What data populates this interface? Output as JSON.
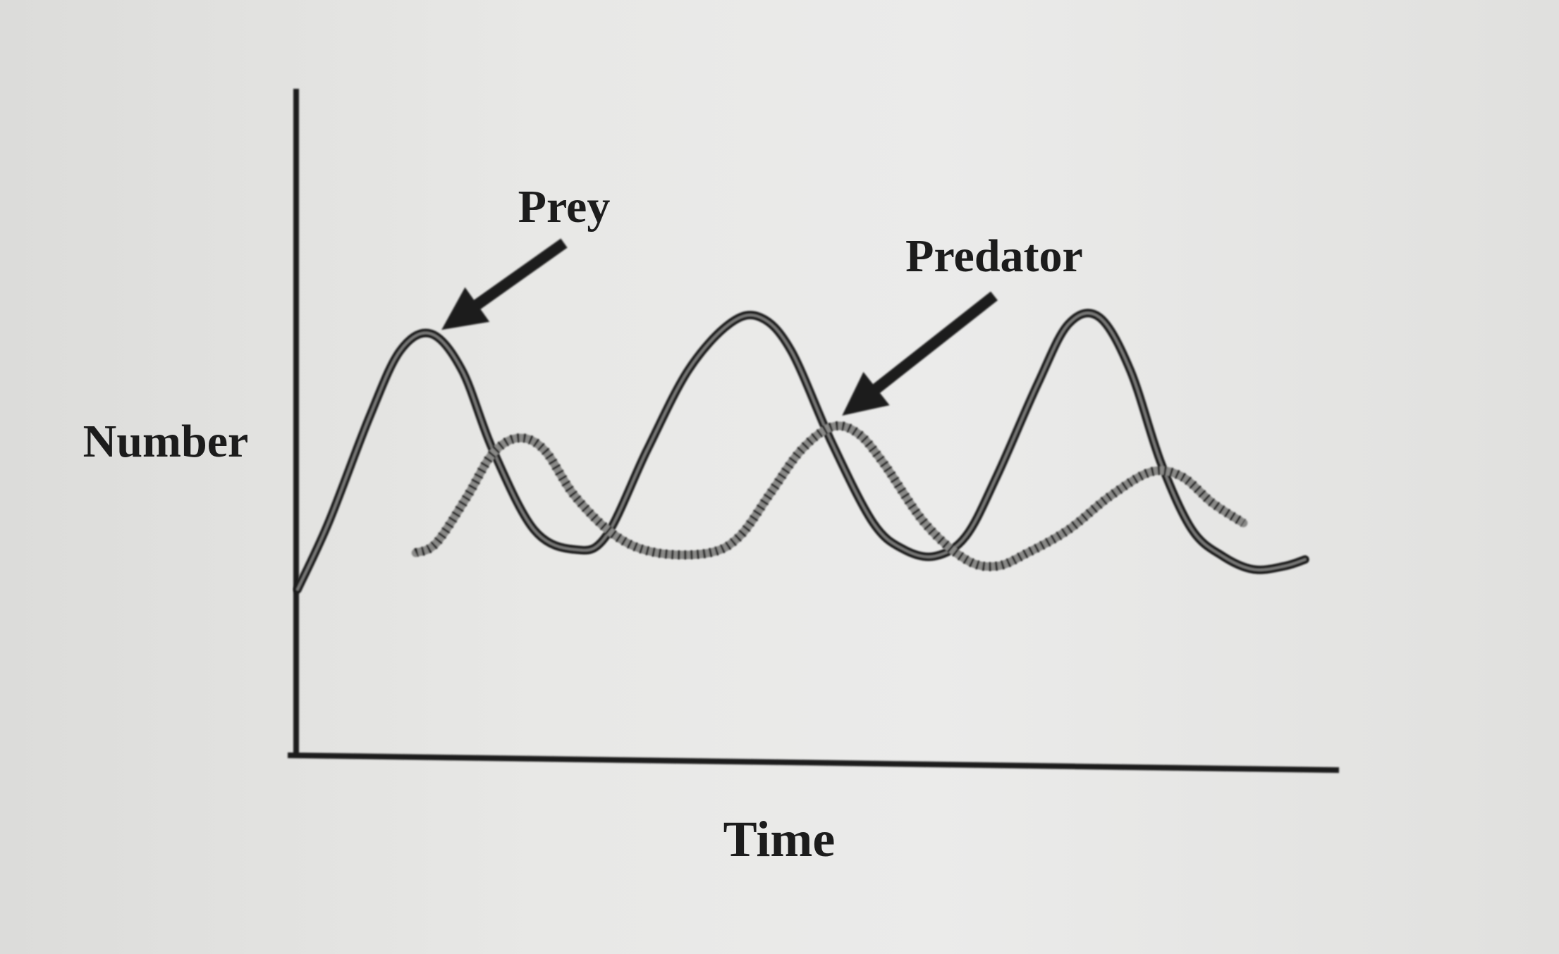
{
  "chart_data": {
    "type": "line",
    "title": "",
    "xlabel": "Time",
    "ylabel": "Number",
    "axis_ticks": false,
    "grid": false,
    "legend": "none",
    "xlim": [
      0,
      100
    ],
    "ylim": [
      0,
      100
    ],
    "series": [
      {
        "name": "Prey",
        "style": "solid",
        "color": "#1c1c1c",
        "points": [
          [
            0,
            25
          ],
          [
            3,
            35
          ],
          [
            7,
            51
          ],
          [
            10,
            61
          ],
          [
            13,
            63.5
          ],
          [
            16,
            58
          ],
          [
            19,
            46
          ],
          [
            23,
            34
          ],
          [
            27,
            31
          ],
          [
            30,
            33
          ],
          [
            34,
            46
          ],
          [
            38,
            58
          ],
          [
            42,
            65
          ],
          [
            45,
            66
          ],
          [
            48,
            61
          ],
          [
            52,
            47
          ],
          [
            56,
            35
          ],
          [
            59,
            31
          ],
          [
            62,
            30
          ],
          [
            65,
            33
          ],
          [
            68,
            42
          ],
          [
            72,
            56
          ],
          [
            75,
            65
          ],
          [
            78,
            66
          ],
          [
            81,
            58
          ],
          [
            84,
            44
          ],
          [
            87,
            34
          ],
          [
            90,
            30
          ],
          [
            93,
            28
          ],
          [
            96,
            28.5
          ],
          [
            98,
            29.5
          ]
        ]
      },
      {
        "name": "Predator",
        "style": "dotted",
        "color": "#1c1c1c",
        "points": [
          [
            11.5,
            30.5
          ],
          [
            13.5,
            32
          ],
          [
            16.5,
            39
          ],
          [
            19,
            45.5
          ],
          [
            21.5,
            47.8
          ],
          [
            24,
            46
          ],
          [
            27,
            39
          ],
          [
            31,
            33
          ],
          [
            35,
            30.5
          ],
          [
            40,
            30.5
          ],
          [
            43,
            33
          ],
          [
            46,
            39.5
          ],
          [
            49,
            46
          ],
          [
            52,
            49.5
          ],
          [
            54.5,
            48.5
          ],
          [
            57,
            44
          ],
          [
            61,
            35
          ],
          [
            65,
            29.5
          ],
          [
            68,
            28.5
          ],
          [
            71,
            30.5
          ],
          [
            75,
            34
          ],
          [
            79,
            39
          ],
          [
            83,
            42.7
          ],
          [
            86,
            42
          ],
          [
            89,
            38
          ],
          [
            92,
            35
          ]
        ]
      }
    ],
    "annotations": [
      {
        "text": "Prey",
        "series": "Prey",
        "points_to": [
          13,
          63
        ]
      },
      {
        "text": "Predator",
        "series": "Predator",
        "points_to": [
          52,
          50
        ]
      }
    ]
  }
}
